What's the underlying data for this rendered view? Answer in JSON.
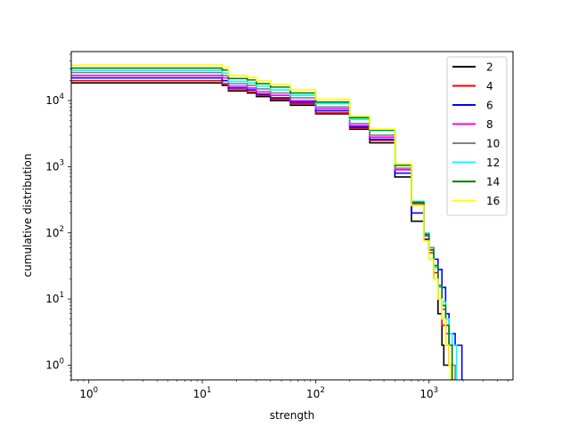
{
  "chart_data": {
    "type": "line",
    "title": "",
    "xlabel": "strength",
    "ylabel": "cumulative distribution",
    "xscale": "log",
    "yscale": "log",
    "xlim": [
      0.7,
      5500
    ],
    "ylim": [
      0.6,
      55000
    ],
    "grid": false,
    "legend_position": "top-right",
    "x_ticks": [
      {
        "value": 1,
        "base": "10",
        "exp": "0"
      },
      {
        "value": 10,
        "base": "10",
        "exp": "1"
      },
      {
        "value": 100,
        "base": "10",
        "exp": "2"
      },
      {
        "value": 1000,
        "base": "10",
        "exp": "3"
      }
    ],
    "y_ticks": [
      {
        "value": 1,
        "base": "10",
        "exp": "0"
      },
      {
        "value": 10,
        "base": "10",
        "exp": "1"
      },
      {
        "value": 100,
        "base": "10",
        "exp": "2"
      },
      {
        "value": 1000,
        "base": "10",
        "exp": "3"
      },
      {
        "value": 10000,
        "base": "10",
        "exp": "4"
      }
    ],
    "series": [
      {
        "name": "2",
        "color": "#000000",
        "x": [
          0.7,
          12,
          15,
          17,
          25,
          30,
          40,
          60,
          100,
          200,
          300,
          500,
          700,
          900,
          1000,
          1100,
          1200,
          1300,
          1350,
          1400,
          1500,
          1600
        ],
        "y": [
          18500,
          18500,
          17000,
          14000,
          13000,
          11500,
          10000,
          8500,
          6300,
          3700,
          2300,
          700,
          150,
          80,
          40,
          20,
          6,
          2,
          1,
          1,
          1,
          1
        ]
      },
      {
        "name": "4",
        "color": "#ff0000",
        "x": [
          0.7,
          12,
          15,
          17,
          25,
          30,
          40,
          60,
          100,
          200,
          300,
          500,
          700,
          900,
          1000,
          1100,
          1200,
          1300,
          1400,
          1500,
          1600
        ],
        "y": [
          20000,
          20000,
          18000,
          14500,
          13500,
          12000,
          10500,
          9000,
          6500,
          3800,
          2500,
          900,
          280,
          95,
          50,
          25,
          10,
          4,
          2,
          1,
          1
        ]
      },
      {
        "name": "6",
        "color": "#0000ff",
        "x": [
          0.7,
          12,
          15,
          17,
          25,
          30,
          40,
          60,
          100,
          200,
          300,
          500,
          700,
          900,
          1000,
          1100,
          1200,
          1300,
          1400,
          1500,
          1700,
          1900,
          1950
        ],
        "y": [
          22000,
          22000,
          20000,
          15500,
          14500,
          12500,
          11000,
          9500,
          7000,
          4000,
          2600,
          800,
          200,
          100,
          60,
          40,
          28,
          15,
          6,
          3,
          2,
          2,
          1
        ]
      },
      {
        "name": "8",
        "color": "#ff00ff",
        "x": [
          0.7,
          12,
          15,
          17,
          25,
          30,
          40,
          60,
          100,
          200,
          300,
          500,
          700,
          900,
          1000,
          1100,
          1200,
          1300,
          1400,
          1500,
          1600
        ],
        "y": [
          24000,
          24000,
          22000,
          16500,
          15500,
          13500,
          12000,
          10000,
          7500,
          4200,
          2800,
          900,
          260,
          90,
          55,
          30,
          15,
          7,
          3,
          1,
          1
        ]
      },
      {
        "name": "10",
        "color": "#808080",
        "x": [
          0.7,
          12,
          15,
          17,
          25,
          30,
          40,
          60,
          100,
          200,
          300,
          500,
          700,
          900,
          1000,
          1100,
          1200,
          1300,
          1400,
          1500,
          1600,
          1700
        ],
        "y": [
          26500,
          26500,
          24000,
          18000,
          17000,
          15000,
          13000,
          11000,
          8000,
          4500,
          3000,
          950,
          270,
          95,
          60,
          32,
          16,
          8,
          4,
          2,
          1,
          1
        ]
      },
      {
        "name": "12",
        "color": "#00ffff",
        "x": [
          0.7,
          12,
          15,
          17,
          25,
          30,
          40,
          60,
          100,
          200,
          300,
          500,
          700,
          900,
          1000,
          1100,
          1200,
          1300,
          1400,
          1500,
          1600,
          1700,
          1750
        ],
        "y": [
          28500,
          28500,
          26000,
          19500,
          18500,
          16500,
          14500,
          12000,
          9000,
          5200,
          3500,
          1100,
          300,
          100,
          55,
          30,
          15,
          9,
          5,
          3,
          2,
          2,
          1
        ]
      },
      {
        "name": "14",
        "color": "#008000",
        "x": [
          0.7,
          12,
          15,
          17,
          25,
          30,
          40,
          60,
          100,
          200,
          300,
          500,
          700,
          900,
          1000,
          1100,
          1200,
          1300,
          1400,
          1500,
          1600
        ],
        "y": [
          31000,
          31000,
          29000,
          21500,
          20500,
          18000,
          16000,
          13000,
          9500,
          5500,
          3600,
          1050,
          290,
          95,
          55,
          32,
          16,
          8,
          4,
          2,
          1
        ]
      },
      {
        "name": "16",
        "color": "#ffff00",
        "x": [
          0.7,
          12,
          15,
          17,
          25,
          30,
          40,
          60,
          100,
          200,
          300,
          500,
          700,
          900,
          1000,
          1100,
          1200,
          1300,
          1400,
          1500,
          1550
        ],
        "y": [
          34500,
          34500,
          32000,
          24000,
          22500,
          20000,
          17500,
          14500,
          10500,
          5800,
          3700,
          1100,
          260,
          75,
          40,
          20,
          10,
          5,
          2,
          1,
          1
        ]
      }
    ]
  }
}
